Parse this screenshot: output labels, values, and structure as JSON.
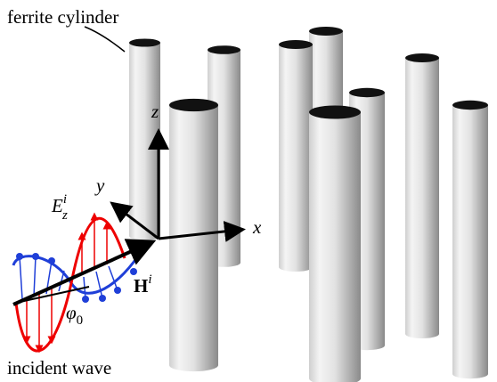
{
  "labels": {
    "ferrite_cylinder": "ferrite cylinder",
    "incident_wave": "incident wave",
    "z_axis": "z",
    "y_axis": "y",
    "x_axis": "x",
    "e_field": {
      "symbol": "E",
      "sub": "z",
      "sup": "i"
    },
    "h_field": {
      "symbol": "H",
      "sup": "i"
    },
    "angle": {
      "symbol": "φ",
      "sub": "0"
    }
  }
}
